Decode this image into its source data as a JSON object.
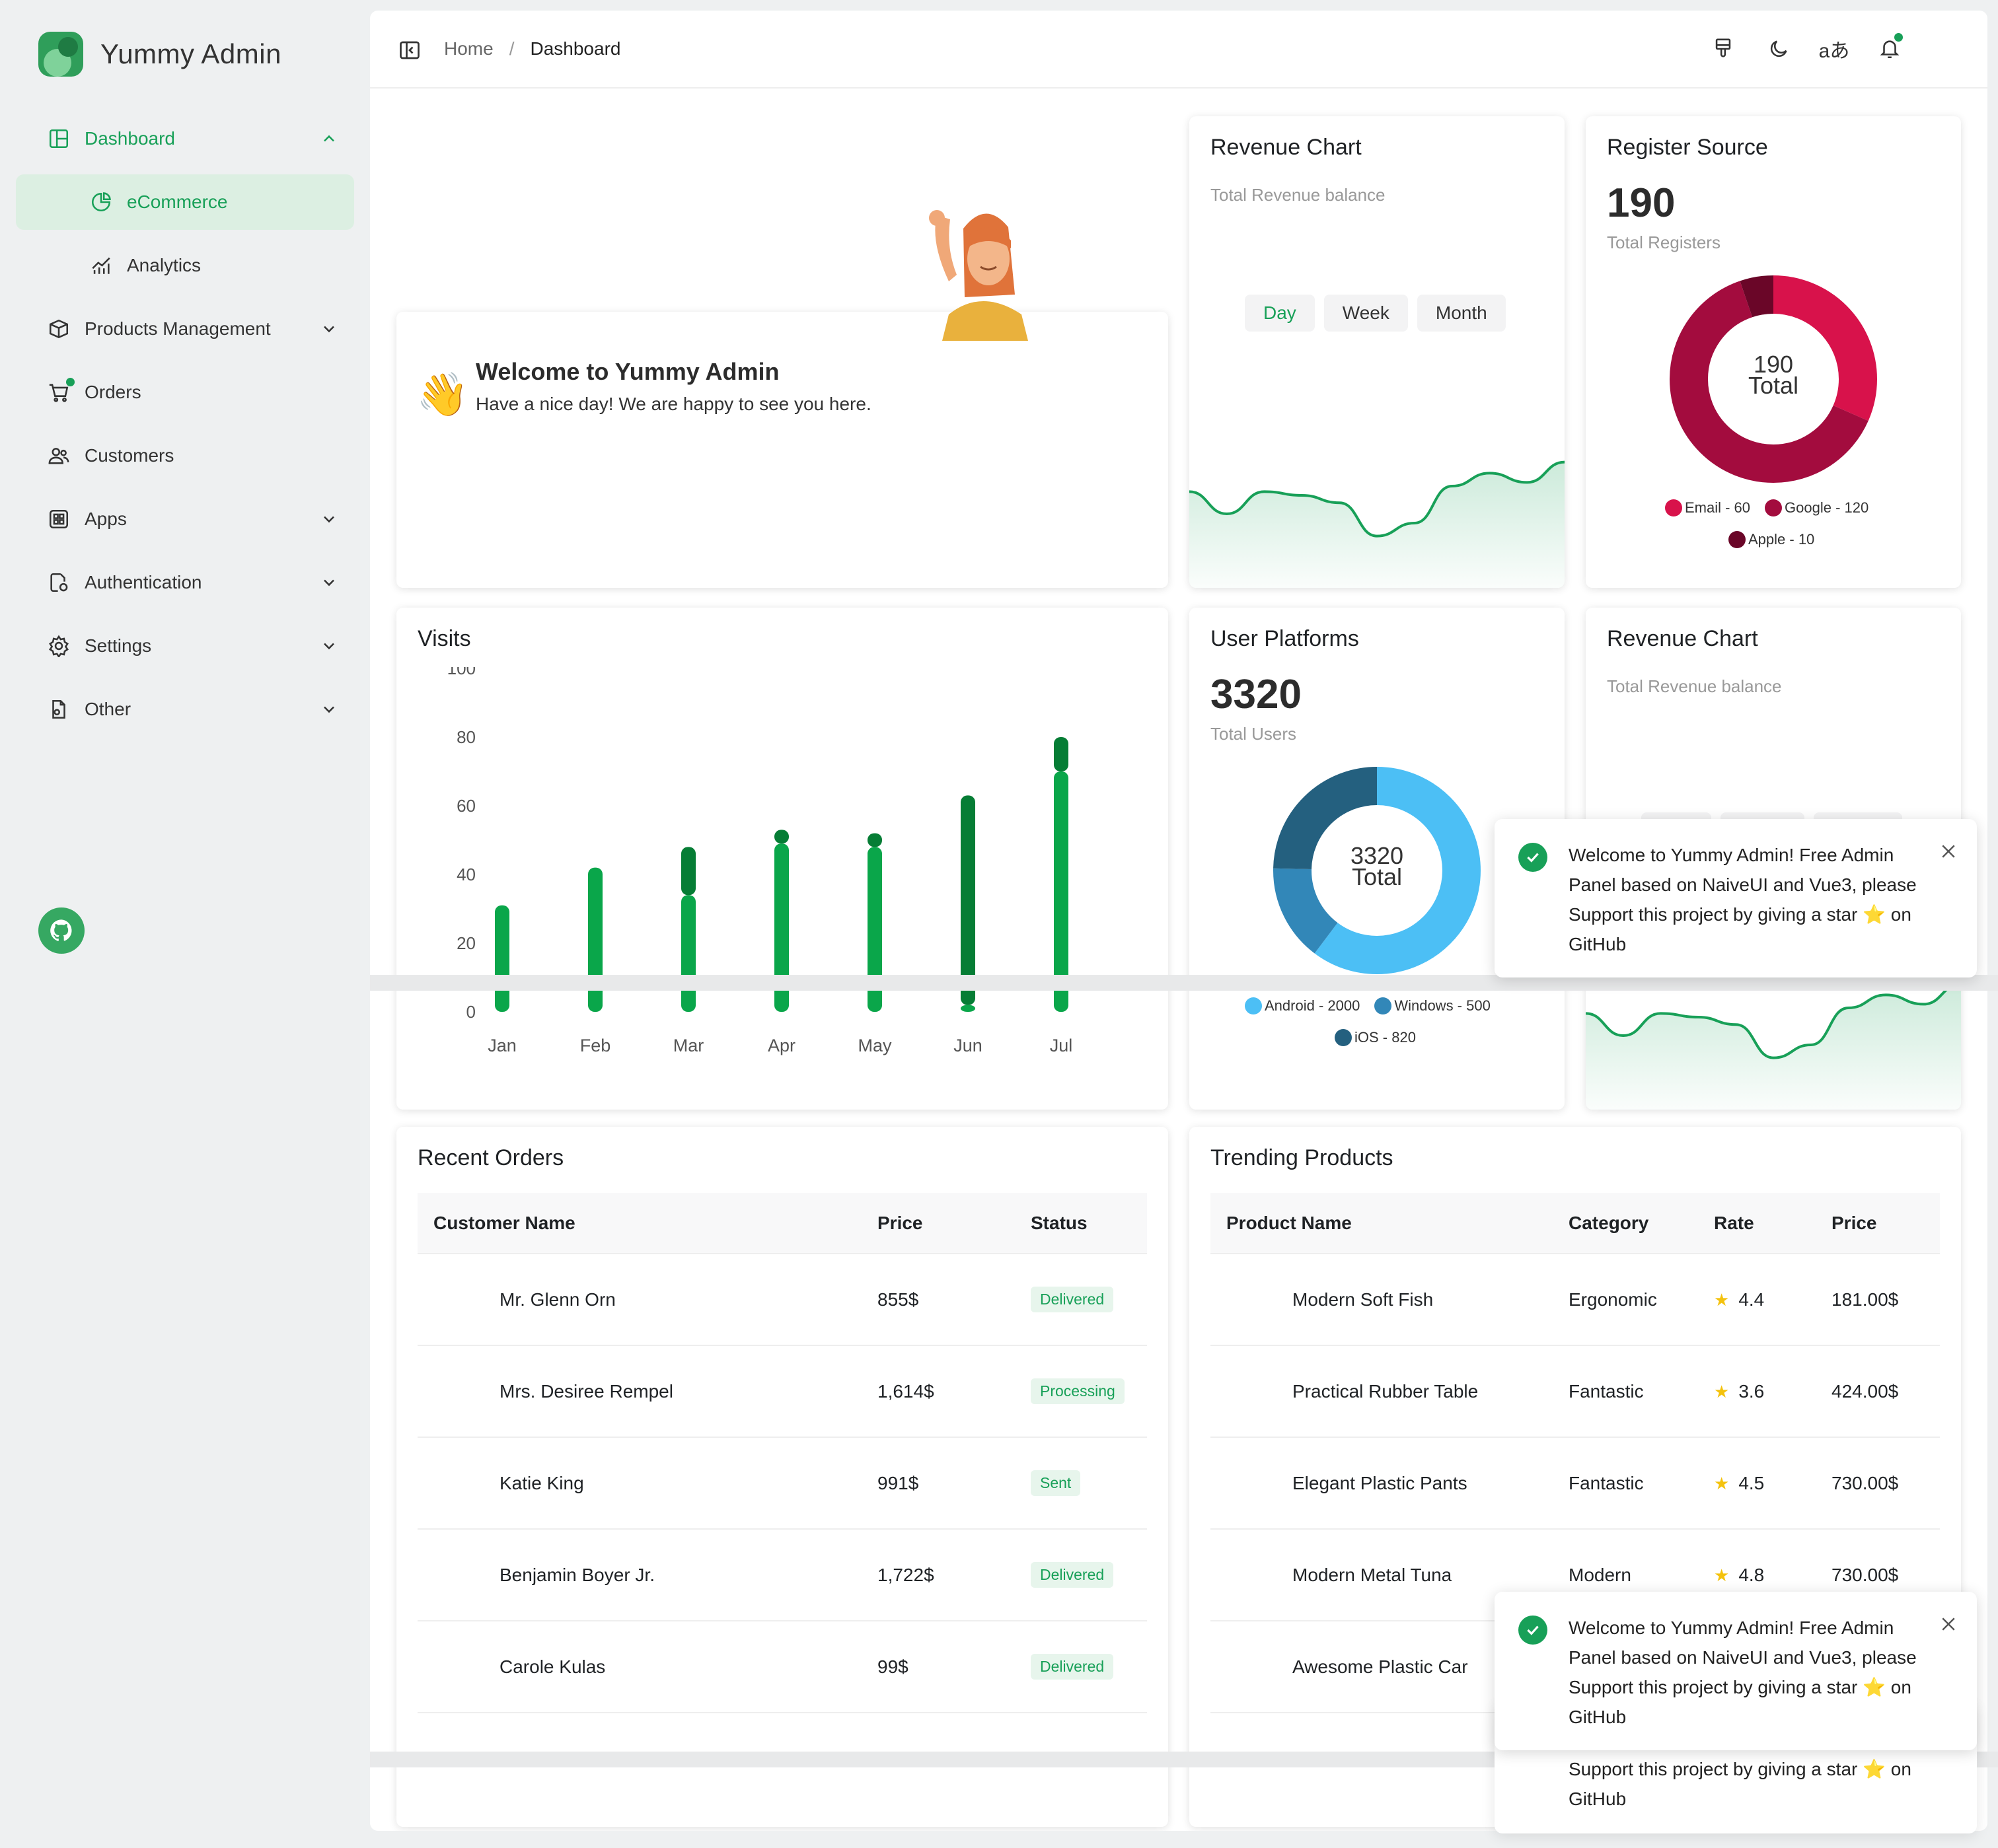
{
  "app": {
    "name": "Yummy Admin"
  },
  "sidebar": {
    "items": [
      {
        "label": "Dashboard",
        "icon": "dashboard-icon"
      },
      {
        "label": "eCommerce",
        "icon": "ecommerce-icon"
      },
      {
        "label": "Analytics",
        "icon": "analytics-icon"
      },
      {
        "label": "Products Management",
        "icon": "box-icon"
      },
      {
        "label": "Orders",
        "icon": "cart-icon"
      },
      {
        "label": "Customers",
        "icon": "users-icon"
      },
      {
        "label": "Apps",
        "icon": "apps-icon"
      },
      {
        "label": "Authentication",
        "icon": "auth-icon"
      },
      {
        "label": "Settings",
        "icon": "gear-icon"
      },
      {
        "label": "Other",
        "icon": "file-icon"
      }
    ]
  },
  "header": {
    "breadcrumb": [
      "Home",
      "/",
      "Dashboard"
    ],
    "language_glyph": "aあ"
  },
  "welcome": {
    "title": "Welcome to Yummy Admin",
    "subtitle": "Have a nice day! We are happy to see you here.",
    "emoji": "👋"
  },
  "revenue_chart": {
    "title": "Revenue Chart",
    "subtitle": "Total Revenue balance",
    "periods": [
      "Day",
      "Week",
      "Month"
    ],
    "selected": "Day"
  },
  "register_source": {
    "title": "Register Source",
    "total": "190",
    "total_label": "Total Registers",
    "center_value": "190",
    "center_label": "Total",
    "legend": [
      "Email - 60",
      "Google - 120",
      "Apple - 10"
    ],
    "colors": [
      "#d8124b",
      "#a30c3e",
      "#6a0628"
    ]
  },
  "visits": {
    "title": "Visits"
  },
  "user_platforms": {
    "title": "User Platforms",
    "total": "3320",
    "total_label": "Total Users",
    "center_value": "3320",
    "center_label": "Total",
    "legend": [
      "Android - 2000",
      "Windows - 500",
      "iOS - 820"
    ],
    "colors": [
      "#4cbff5",
      "#3287b8",
      "#24607f"
    ]
  },
  "recent_orders": {
    "title": "Recent Orders",
    "columns": [
      "Customer Name",
      "Price",
      "Status"
    ],
    "rows": [
      [
        "Mr. Glenn Orn",
        "855$",
        "Delivered"
      ],
      [
        "Mrs. Desiree Rempel",
        "1,614$",
        "Processing"
      ],
      [
        "Katie King",
        "991$",
        "Sent"
      ],
      [
        "Benjamin Boyer Jr.",
        "1,722$",
        "Delivered"
      ],
      [
        "Carole Kulas",
        "99$",
        "Delivered"
      ]
    ]
  },
  "trending_products": {
    "title": "Trending Products",
    "columns": [
      "Product Name",
      "Category",
      "Rate",
      "Price"
    ],
    "rows": [
      [
        "Modern Soft Fish",
        "Ergonomic",
        "4.4",
        "181.00$"
      ],
      [
        "Practical Rubber Table",
        "Fantastic",
        "3.6",
        "424.00$"
      ],
      [
        "Elegant Plastic Pants",
        "Fantastic",
        "4.5",
        "730.00$"
      ],
      [
        "Modern Metal Tuna",
        "Modern",
        "4.8",
        "730.00$"
      ],
      [
        "Awesome Plastic Car",
        "",
        "",
        ""
      ]
    ]
  },
  "toast": {
    "message": "Welcome to Yummy Admin! Free Admin Panel based on NaiveUI and Vue3, please Support this project by giving a star ⭐ on GitHub",
    "tail": "Support this project by giving a star ⭐ on GitHub"
  },
  "chart_data": [
    {
      "type": "bar",
      "title": "Visits",
      "categories": [
        "Jan",
        "Feb",
        "Mar",
        "Apr",
        "May",
        "Jun",
        "Jul"
      ],
      "series": [
        {
          "values": [
            31,
            42,
            34,
            49,
            48,
            2,
            70
          ]
        },
        {
          "values": [
            0,
            0,
            14,
            4,
            4,
            61,
            10
          ]
        }
      ],
      "yticks": [
        0,
        20,
        40,
        60,
        80,
        100
      ],
      "ylim": [
        0,
        100
      ],
      "colors": [
        "#0aa64a",
        "#067d35"
      ]
    },
    {
      "type": "pie",
      "title": "Register Source",
      "labels": [
        "Email",
        "Google",
        "Apple"
      ],
      "values": [
        60,
        120,
        10
      ]
    },
    {
      "type": "pie",
      "title": "User Platforms",
      "labels": [
        "Android",
        "Windows",
        "iOS"
      ],
      "values": [
        2000,
        500,
        820
      ]
    },
    {
      "type": "area",
      "title": "Revenue Chart",
      "values": [
        52,
        40,
        52,
        50,
        46,
        28,
        35,
        55,
        62,
        57,
        68
      ]
    }
  ]
}
